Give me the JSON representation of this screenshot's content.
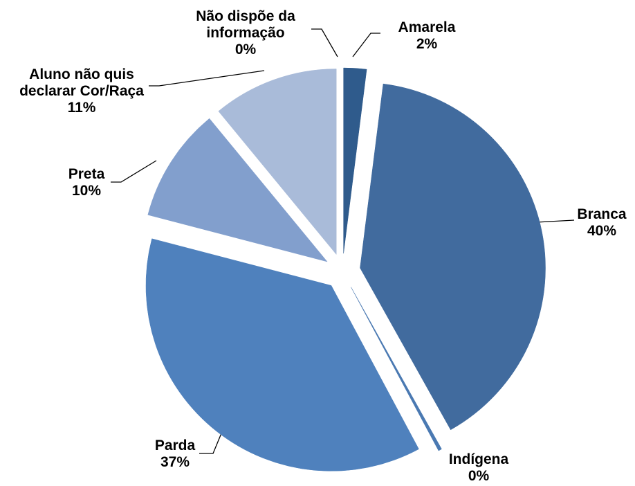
{
  "chart_data": {
    "type": "pie",
    "categories": [
      "Amarela",
      "Branca",
      "Indígena",
      "Parda",
      "Preta",
      "Aluno não quis declarar Cor/Raça",
      "Não dispõe da informação"
    ],
    "values": [
      2,
      40,
      0.3,
      37,
      10,
      11,
      0
    ],
    "value_labels": [
      "2%",
      "40%",
      "0%",
      "37%",
      "10%",
      "11%",
      "0%"
    ],
    "colors": [
      "#2f5b8c",
      "#416b9e",
      "#4a79b2",
      "#4f81bd",
      "#829fcd",
      "#a9bbd9",
      "#c5d0e6"
    ]
  }
}
